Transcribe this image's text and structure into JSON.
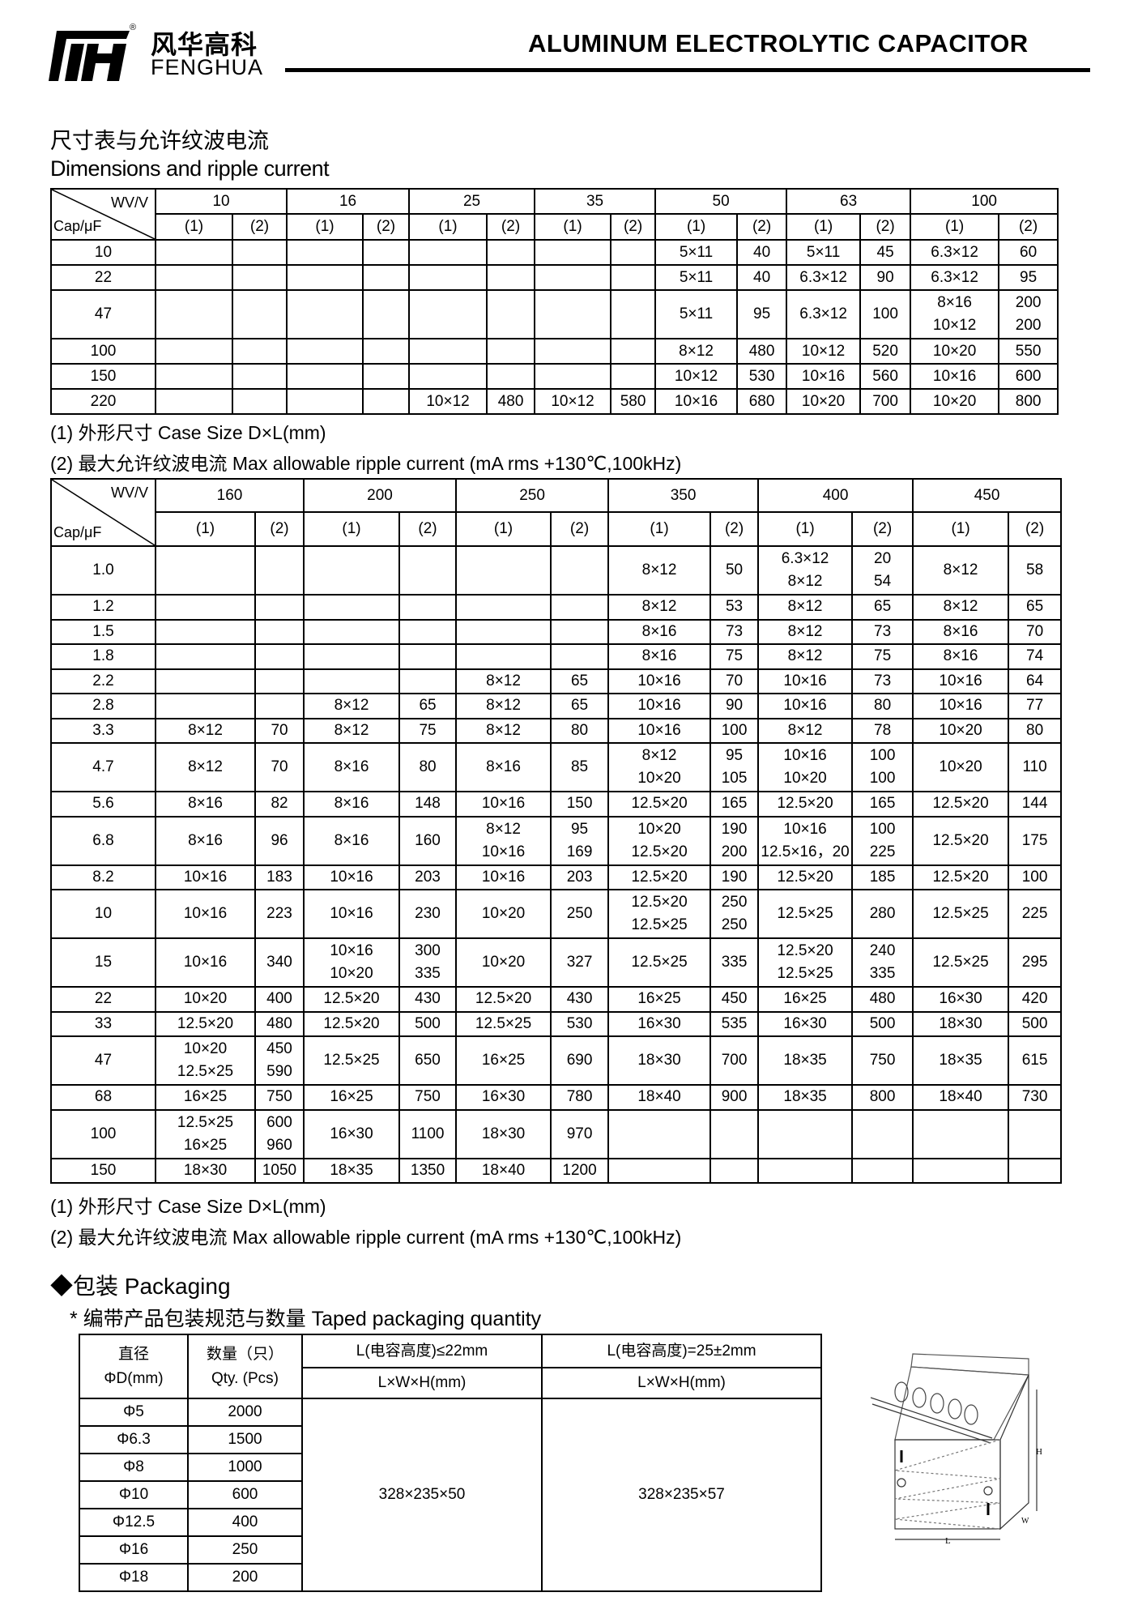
{
  "header": {
    "brand_cn": "风华高科",
    "brand_en": "FENGHUA",
    "registered_mark": "®",
    "doc_title": "ALUMINUM ELECTROLYTIC CAPACITOR"
  },
  "section": {
    "title_cn": "尺寸表与允许纹波电流",
    "title_en": "Dimensions and ripple current"
  },
  "corner": {
    "wv": "WV/V",
    "cap": "Cap/μF"
  },
  "sub_headers": [
    "(1)",
    "(2)"
  ],
  "notes": {
    "note1": "(1)  外形尺寸  Case Size D×L(mm)",
    "note2": "(2)  最大允许纹波电流  Max allowable ripple current    (mA rms +130℃,100kHz)"
  },
  "table1": {
    "voltages": [
      "10",
      "16",
      "25",
      "35",
      "50",
      "63",
      "100"
    ],
    "rows": [
      {
        "cap": "10",
        "cells": [
          [],
          [],
          [],
          [],
          [],
          [],
          [],
          [],
          [
            "5×11"
          ],
          [
            "40"
          ],
          [
            "5×11"
          ],
          [
            "45"
          ],
          [
            "6.3×12"
          ],
          [
            "60"
          ]
        ]
      },
      {
        "cap": "22",
        "cells": [
          [],
          [],
          [],
          [],
          [],
          [],
          [],
          [],
          [
            "5×11"
          ],
          [
            "40"
          ],
          [
            "6.3×12"
          ],
          [
            "90"
          ],
          [
            "6.3×12"
          ],
          [
            "95"
          ]
        ]
      },
      {
        "cap": "47",
        "cells": [
          [],
          [],
          [],
          [],
          [],
          [],
          [],
          [],
          [
            "5×11"
          ],
          [
            "95"
          ],
          [
            "6.3×12"
          ],
          [
            "100"
          ],
          [
            "8×16",
            "10×12"
          ],
          [
            "200",
            "200"
          ]
        ]
      },
      {
        "cap": "100",
        "cells": [
          [],
          [],
          [],
          [],
          [],
          [],
          [],
          [],
          [
            "8×12"
          ],
          [
            "480"
          ],
          [
            "10×12"
          ],
          [
            "520"
          ],
          [
            "10×20"
          ],
          [
            "550"
          ]
        ]
      },
      {
        "cap": "150",
        "cells": [
          [],
          [],
          [],
          [],
          [],
          [],
          [],
          [],
          [
            "10×12"
          ],
          [
            "530"
          ],
          [
            "10×16"
          ],
          [
            "560"
          ],
          [
            "10×16"
          ],
          [
            "600"
          ]
        ]
      },
      {
        "cap": "220",
        "cells": [
          [],
          [],
          [],
          [],
          [
            "10×12"
          ],
          [
            "480"
          ],
          [
            "10×12"
          ],
          [
            "580"
          ],
          [
            "10×16"
          ],
          [
            "680"
          ],
          [
            "10×20"
          ],
          [
            "700"
          ],
          [
            "10×20"
          ],
          [
            "800"
          ]
        ]
      }
    ]
  },
  "table2": {
    "voltages": [
      "160",
      "200",
      "250",
      "350",
      "400",
      "450"
    ],
    "rows": [
      {
        "cap": "1.0",
        "cells": [
          [],
          [],
          [],
          [],
          [],
          [],
          [
            "8×12"
          ],
          [
            "50"
          ],
          [
            "6.3×12",
            "8×12"
          ],
          [
            "20",
            "54"
          ],
          [
            "8×12"
          ],
          [
            "58"
          ]
        ]
      },
      {
        "cap": "1.2",
        "cells": [
          [],
          [],
          [],
          [],
          [],
          [],
          [
            "8×12"
          ],
          [
            "53"
          ],
          [
            "8×12"
          ],
          [
            "65"
          ],
          [
            "8×12"
          ],
          [
            "65"
          ]
        ]
      },
      {
        "cap": "1.5",
        "cells": [
          [],
          [],
          [],
          [],
          [],
          [],
          [
            "8×16"
          ],
          [
            "73"
          ],
          [
            "8×12"
          ],
          [
            "73"
          ],
          [
            "8×16"
          ],
          [
            "70"
          ]
        ]
      },
      {
        "cap": "1.8",
        "cells": [
          [],
          [],
          [],
          [],
          [],
          [],
          [
            "8×16"
          ],
          [
            "75"
          ],
          [
            "8×12"
          ],
          [
            "75"
          ],
          [
            "8×16"
          ],
          [
            "74"
          ]
        ]
      },
      {
        "cap": "2.2",
        "cells": [
          [],
          [],
          [],
          [],
          [
            "8×12"
          ],
          [
            "65"
          ],
          [
            "10×16"
          ],
          [
            "70"
          ],
          [
            "10×16"
          ],
          [
            "73"
          ],
          [
            "10×16"
          ],
          [
            "64"
          ]
        ]
      },
      {
        "cap": "2.8",
        "cells": [
          [],
          [],
          [
            "8×12"
          ],
          [
            "65"
          ],
          [
            "8×12"
          ],
          [
            "65"
          ],
          [
            "10×16"
          ],
          [
            "90"
          ],
          [
            "10×16"
          ],
          [
            "80"
          ],
          [
            "10×16"
          ],
          [
            "77"
          ]
        ]
      },
      {
        "cap": "3.3",
        "cells": [
          [
            "8×12"
          ],
          [
            "70"
          ],
          [
            "8×12"
          ],
          [
            "75"
          ],
          [
            "8×12"
          ],
          [
            "80"
          ],
          [
            "10×16"
          ],
          [
            "100"
          ],
          [
            "8×12"
          ],
          [
            "78"
          ],
          [
            "10×20"
          ],
          [
            "80"
          ]
        ]
      },
      {
        "cap": "4.7",
        "cells": [
          [
            "8×12"
          ],
          [
            "70"
          ],
          [
            "8×16"
          ],
          [
            "80"
          ],
          [
            "8×16"
          ],
          [
            "85"
          ],
          [
            "8×12",
            "10×20"
          ],
          [
            "95",
            "105"
          ],
          [
            "10×16",
            "10×20"
          ],
          [
            "100",
            "100"
          ],
          [
            "10×20"
          ],
          [
            "110"
          ]
        ]
      },
      {
        "cap": "5.6",
        "cells": [
          [
            "8×16"
          ],
          [
            "82"
          ],
          [
            "8×16"
          ],
          [
            "148"
          ],
          [
            "10×16"
          ],
          [
            "150"
          ],
          [
            "12.5×20"
          ],
          [
            "165"
          ],
          [
            "12.5×20"
          ],
          [
            "165"
          ],
          [
            "12.5×20"
          ],
          [
            "144"
          ]
        ]
      },
      {
        "cap": "6.8",
        "cells": [
          [
            "8×16"
          ],
          [
            "96"
          ],
          [
            "8×16"
          ],
          [
            "160"
          ],
          [
            "8×12",
            "10×16"
          ],
          [
            "95",
            "169"
          ],
          [
            "10×20",
            "12.5×20"
          ],
          [
            "190",
            "200"
          ],
          [
            "10×16",
            "12.5×16，20"
          ],
          [
            "100",
            "225"
          ],
          [
            "12.5×20"
          ],
          [
            "175"
          ]
        ]
      },
      {
        "cap": "8.2",
        "cells": [
          [
            "10×16"
          ],
          [
            "183"
          ],
          [
            "10×16"
          ],
          [
            "203"
          ],
          [
            "10×16"
          ],
          [
            "203"
          ],
          [
            "12.5×20"
          ],
          [
            "190"
          ],
          [
            "12.5×20"
          ],
          [
            "185"
          ],
          [
            "12.5×20"
          ],
          [
            "100"
          ]
        ]
      },
      {
        "cap": "10",
        "cells": [
          [
            "10×16"
          ],
          [
            "223"
          ],
          [
            "10×16"
          ],
          [
            "230"
          ],
          [
            "10×20"
          ],
          [
            "250"
          ],
          [
            "12.5×20",
            "12.5×25"
          ],
          [
            "250",
            "250"
          ],
          [
            "12.5×25"
          ],
          [
            "280"
          ],
          [
            "12.5×25"
          ],
          [
            "225"
          ]
        ]
      },
      {
        "cap": "15",
        "cells": [
          [
            "10×16"
          ],
          [
            "340"
          ],
          [
            "10×16",
            "10×20"
          ],
          [
            "300",
            "335"
          ],
          [
            "10×20"
          ],
          [
            "327"
          ],
          [
            "12.5×25"
          ],
          [
            "335"
          ],
          [
            "12.5×20",
            "12.5×25"
          ],
          [
            "240",
            "335"
          ],
          [
            "12.5×25"
          ],
          [
            "295"
          ]
        ]
      },
      {
        "cap": "22",
        "cells": [
          [
            "10×20"
          ],
          [
            "400"
          ],
          [
            "12.5×20"
          ],
          [
            "430"
          ],
          [
            "12.5×20"
          ],
          [
            "430"
          ],
          [
            "16×25"
          ],
          [
            "450"
          ],
          [
            "16×25"
          ],
          [
            "480"
          ],
          [
            "16×30"
          ],
          [
            "420"
          ]
        ]
      },
      {
        "cap": "33",
        "cells": [
          [
            "12.5×20"
          ],
          [
            "480"
          ],
          [
            "12.5×20"
          ],
          [
            "500"
          ],
          [
            "12.5×25"
          ],
          [
            "530"
          ],
          [
            "16×30"
          ],
          [
            "535"
          ],
          [
            "16×30"
          ],
          [
            "500"
          ],
          [
            "18×30"
          ],
          [
            "500"
          ]
        ]
      },
      {
        "cap": "47",
        "cells": [
          [
            "10×20",
            "12.5×25"
          ],
          [
            "450",
            "590"
          ],
          [
            "12.5×25"
          ],
          [
            "650"
          ],
          [
            "16×25"
          ],
          [
            "690"
          ],
          [
            "18×30"
          ],
          [
            "700"
          ],
          [
            "18×35"
          ],
          [
            "750"
          ],
          [
            "18×35"
          ],
          [
            "615"
          ]
        ]
      },
      {
        "cap": "68",
        "cells": [
          [
            "16×25"
          ],
          [
            "750"
          ],
          [
            "16×25"
          ],
          [
            "750"
          ],
          [
            "16×30"
          ],
          [
            "780"
          ],
          [
            "18×40"
          ],
          [
            "900"
          ],
          [
            "18×35"
          ],
          [
            "800"
          ],
          [
            "18×40"
          ],
          [
            "730"
          ]
        ]
      },
      {
        "cap": "100",
        "cells": [
          [
            "12.5×25",
            "16×25"
          ],
          [
            "600",
            "960"
          ],
          [
            "16×30"
          ],
          [
            "1100"
          ],
          [
            "18×30"
          ],
          [
            "970"
          ],
          [],
          [],
          [],
          [],
          [],
          []
        ]
      },
      {
        "cap": "150",
        "cells": [
          [
            "18×30"
          ],
          [
            "1050"
          ],
          [
            "18×35"
          ],
          [
            "1350"
          ],
          [
            "18×40"
          ],
          [
            "1200"
          ],
          [],
          [],
          [],
          [],
          [],
          []
        ]
      }
    ]
  },
  "packaging": {
    "title": "◆包装  Packaging",
    "subtitle": "*  编带产品包装规范与数量     Taped packaging quantity",
    "headers": {
      "diameter_cn": "直径",
      "diameter_en": "ΦD(mm)",
      "qty_cn": "数量（只）",
      "qty_en": "Qty. (Pcs)",
      "l1": "L(电容高度)≤22mm",
      "l2": "L(电容高度)=25±2mm",
      "lwh1": "L×W×H(mm)",
      "lwh2": "L×W×H(mm)"
    },
    "rows": [
      {
        "d": "Φ5",
        "qty": "2000"
      },
      {
        "d": "Φ6.3",
        "qty": "1500"
      },
      {
        "d": "Φ8",
        "qty": "1000"
      },
      {
        "d": "Φ10",
        "qty": "600"
      },
      {
        "d": "Φ12.5",
        "qty": "400"
      },
      {
        "d": "Φ16",
        "qty": "250"
      },
      {
        "d": "Φ18",
        "qty": "200"
      }
    ],
    "box1": "328×235×50",
    "box2": "328×235×57",
    "diagram_labels": {
      "h": "H",
      "w": "W",
      "l": "L"
    }
  }
}
